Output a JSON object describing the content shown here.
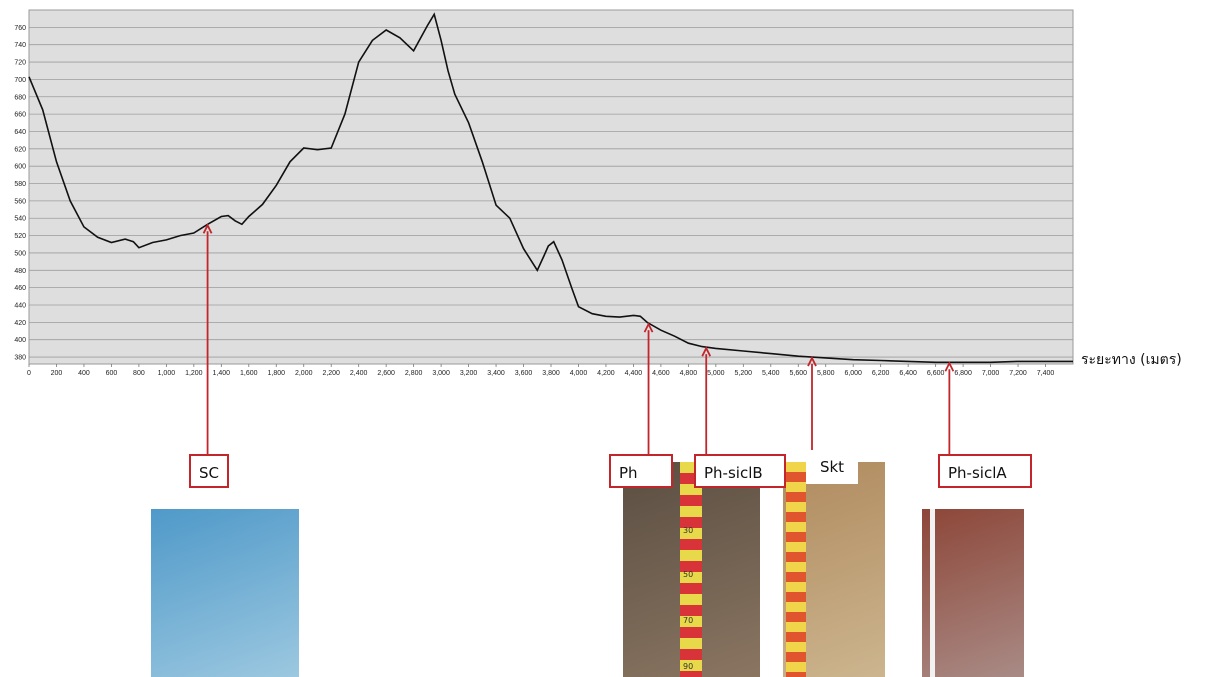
{
  "chart_data": {
    "type": "line",
    "xlabel": "ระยะทาง (เมตร)",
    "ylabel": "",
    "xlim": [
      0,
      7600
    ],
    "ylim": [
      372,
      780
    ],
    "x_ticks": [
      "0",
      "200",
      "400",
      "600",
      "800",
      "1,000",
      "1,200",
      "1,400",
      "1,600",
      "1,800",
      "2,000",
      "2,200",
      "2,400",
      "2,600",
      "2,800",
      "3,000",
      "3,200",
      "3,400",
      "3,600",
      "3,800",
      "4,000",
      "4,200",
      "4,400",
      "4,600",
      "4,800",
      "5,000",
      "5,200",
      "5,400",
      "5,600",
      "5,800",
      "6,000",
      "6,200",
      "6,400",
      "6,600",
      "6,800",
      "7,000",
      "7,200",
      "7,400"
    ],
    "y_ticks": [
      "380",
      "400",
      "420",
      "440",
      "460",
      "480",
      "500",
      "520",
      "540",
      "560",
      "580",
      "600",
      "620",
      "640",
      "660",
      "680",
      "700",
      "720",
      "740",
      "760"
    ],
    "grid": true,
    "series": [
      {
        "x": [
          0,
          100,
          200,
          300,
          400,
          500,
          600,
          700,
          760,
          800,
          900,
          1000,
          1100,
          1200,
          1300,
          1400,
          1450,
          1500,
          1550,
          1600,
          1700,
          1800,
          1900,
          2000,
          2100,
          2200,
          2300,
          2400,
          2500,
          2600,
          2700,
          2800,
          2900,
          2950,
          3000,
          3050,
          3100,
          3200,
          3300,
          3400,
          3500,
          3600,
          3700,
          3750,
          3780,
          3820,
          3880,
          3950,
          4000,
          4100,
          4200,
          4300,
          4400,
          4450,
          4500,
          4600,
          4700,
          4800,
          4900,
          5000,
          5200,
          5400,
          5600,
          5800,
          6000,
          6200,
          6400,
          6600,
          6800,
          7000,
          7200,
          7400,
          7600
        ],
        "y": [
          703,
          665,
          605,
          560,
          530,
          518,
          512,
          516,
          513,
          506,
          512,
          515,
          520,
          523,
          533,
          542,
          543,
          537,
          533,
          542,
          556,
          578,
          605,
          621,
          619,
          621,
          660,
          720,
          745,
          757,
          748,
          733,
          762,
          775,
          745,
          710,
          683,
          650,
          605,
          555,
          540,
          505,
          480,
          497,
          508,
          513,
          492,
          460,
          438,
          430,
          427,
          426,
          428,
          427,
          420,
          411,
          404,
          396,
          392,
          390,
          387,
          384,
          381,
          379,
          377,
          376,
          375,
          374,
          374,
          374,
          375,
          375,
          375
        ]
      }
    ],
    "annotations": [
      {
        "label": "SC",
        "x": 1300
      },
      {
        "label": "Ph",
        "x": 4510
      },
      {
        "label": "Ph-siclB",
        "x": 4930
      },
      {
        "label": "Skt",
        "x": 5700
      },
      {
        "label": "Ph-siclA",
        "x": 6700
      }
    ]
  },
  "photos": [
    {
      "name": "sky-landscape-photo",
      "colors": [
        "#4f99c9",
        "#9cc8e0"
      ]
    },
    {
      "name": "soil-profile-photo-ph",
      "colors": [
        "#5a4e42",
        "#8a7561"
      ]
    },
    {
      "name": "soil-profile-photo-skt",
      "colors": [
        "#b08a5e",
        "#ccb58f"
      ]
    },
    {
      "name": "soil-profile-photo-ph-sicla",
      "colors": [
        "#8d4638",
        "#a98b86"
      ]
    }
  ],
  "ruler_labels": [
    "30",
    "50",
    "70",
    "90"
  ],
  "accent_color": "#c2262b",
  "plot_bg": "#dedede"
}
